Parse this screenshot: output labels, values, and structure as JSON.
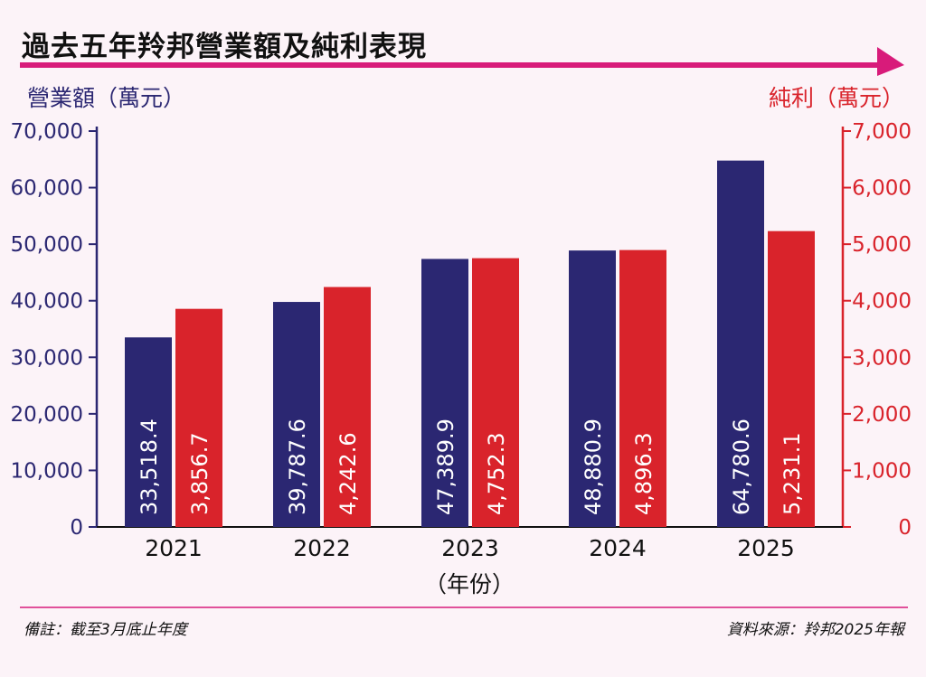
{
  "title": "過去五年羚邦營業額及純利表現",
  "colors": {
    "accent": "#d81b7a",
    "revenue": "#2b2772",
    "profit": "#d9232b",
    "background": "#fcf3f8"
  },
  "footer": {
    "note": "備註：截至3月底止年度",
    "source": "資料來源：羚邦2025年報"
  },
  "chart_data": {
    "type": "bar",
    "categories": [
      "2021",
      "2022",
      "2023",
      "2024",
      "2025"
    ],
    "xlabel": "（年份）",
    "y_left": {
      "label": "營業額（萬元）",
      "range": [
        0,
        70000
      ],
      "ticks": [
        "0",
        "10,000",
        "20,000",
        "30,000",
        "40,000",
        "50,000",
        "60,000",
        "70,000"
      ]
    },
    "y_right": {
      "label": "純利（萬元）",
      "range": [
        0,
        7000
      ],
      "ticks": [
        "0",
        "1,000",
        "2,000",
        "3,000",
        "4,000",
        "5,000",
        "6,000",
        "7,000"
      ]
    },
    "series": [
      {
        "name": "營業額",
        "axis": "left",
        "color": "#2b2772",
        "values": [
          33518.4,
          39787.6,
          47389.9,
          48880.9,
          64780.6
        ],
        "labels": [
          "33,518.4",
          "39,787.6",
          "47,389.9",
          "48,880.9",
          "64,780.6"
        ]
      },
      {
        "name": "純利",
        "axis": "right",
        "color": "#d9232b",
        "values": [
          3856.7,
          4242.6,
          4752.3,
          4896.3,
          5231.1
        ],
        "labels": [
          "3,856.7",
          "4,242.6",
          "4,752.3",
          "4,896.3",
          "5,231.1"
        ]
      }
    ],
    "grid": false
  }
}
